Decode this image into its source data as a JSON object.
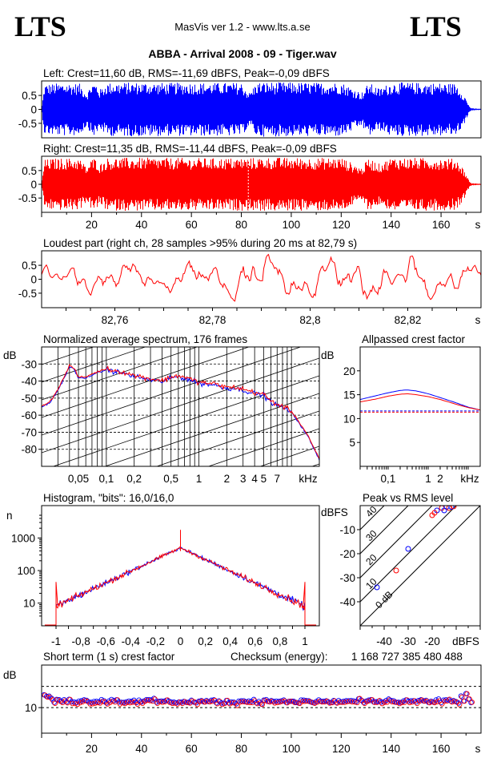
{
  "header": {
    "logo_left": "LTS",
    "logo_right": "LTS",
    "app_title": "MasVis ver 1.2 - www.lts.a.se",
    "track_title": "ABBA - Arrival 2008 - 09 - Tiger.wav"
  },
  "colors": {
    "left": "#0000ff",
    "right": "#ff0000",
    "grid": "#000000"
  },
  "chart_data": [
    {
      "id": "left-waveform",
      "type": "area",
      "title": "Left: Crest=11,60 dB, RMS=-11,69 dBFS, Peak=-0,09 dBFS",
      "ylim": [
        -1,
        1
      ],
      "yticks": [
        "0.5",
        "0",
        "-0.5"
      ],
      "envelope": {
        "x": [
          0,
          1,
          3,
          5,
          10,
          15,
          18,
          20,
          22,
          23,
          26,
          30,
          40,
          50,
          60,
          70,
          80,
          83,
          86,
          90,
          100,
          110,
          120,
          128,
          131,
          135,
          140,
          150,
          160,
          166,
          169,
          170,
          171,
          172,
          176
        ],
        "y": [
          0.15,
          0.9,
          0.92,
          0.93,
          0.95,
          0.93,
          0.6,
          0.95,
          0.93,
          0.7,
          0.95,
          0.96,
          0.97,
          0.95,
          0.96,
          0.95,
          0.96,
          0.6,
          0.97,
          0.98,
          0.97,
          0.96,
          0.97,
          0.6,
          0.96,
          0.75,
          0.97,
          0.96,
          0.95,
          0.93,
          0.55,
          0.35,
          0.15,
          0.04,
          0.02
        ]
      }
    },
    {
      "id": "right-waveform",
      "type": "area",
      "title": "Right: Crest=11,35 dB, RMS=-11,44 dBFS, Peak=-0,09 dBFS",
      "ylim": [
        -1,
        1
      ],
      "yticks": [
        "0.5",
        "0",
        "-0.5"
      ],
      "xticks": [
        "20",
        "40",
        "60",
        "80",
        "100",
        "120",
        "140",
        "160",
        "s"
      ],
      "x_tick_values": [
        20,
        40,
        60,
        80,
        100,
        120,
        140,
        160
      ],
      "x_range": [
        0,
        176
      ],
      "loudest_marker_s": 82.79,
      "envelope": {
        "x": [
          0,
          1,
          3,
          5,
          10,
          15,
          18,
          20,
          22,
          23,
          26,
          30,
          40,
          50,
          60,
          70,
          80,
          83,
          86,
          90,
          100,
          110,
          120,
          128,
          131,
          135,
          140,
          150,
          160,
          166,
          169,
          170,
          171,
          172,
          176
        ],
        "y": [
          0.15,
          0.9,
          0.92,
          0.94,
          0.95,
          0.94,
          0.62,
          0.95,
          0.94,
          0.72,
          0.96,
          0.96,
          0.97,
          0.96,
          0.96,
          0.95,
          0.96,
          0.96,
          0.97,
          0.98,
          0.97,
          0.96,
          0.97,
          0.6,
          0.96,
          0.75,
          0.97,
          0.96,
          0.95,
          0.93,
          0.55,
          0.35,
          0.15,
          0.04,
          0.02
        ]
      }
    },
    {
      "id": "loudest-part",
      "type": "line",
      "title": "Loudest part (right ch, 28 samples >95% during 20 ms at 82,79 s)",
      "ylim": [
        -1,
        1
      ],
      "yticks": [
        "0.5",
        "0",
        "-0.5"
      ],
      "x_range": [
        82.745,
        82.835
      ],
      "xticks": [
        "82,76",
        "82,78",
        "82,8",
        "82,82",
        "s"
      ],
      "x_tick_values": [
        82.76,
        82.78,
        82.8,
        82.82
      ]
    },
    {
      "id": "spectrum",
      "type": "line",
      "title": "Normalized average spectrum, 176 frames",
      "ylabel": "dB",
      "yticks": [
        "-30",
        "-40",
        "-50",
        "-60",
        "-70",
        "-80"
      ],
      "ylim": [
        -90,
        -20
      ],
      "xticks": [
        "0,05",
        "0,1",
        "0,2",
        "0,5",
        "1",
        "2",
        "3",
        "4",
        "5",
        "7",
        "kHz"
      ],
      "x_tick_values": [
        0.05,
        0.1,
        0.2,
        0.5,
        1,
        2,
        3,
        4,
        5,
        7
      ],
      "x_range_khz": [
        0.02,
        20
      ],
      "series": [
        {
          "x": [
            0.02,
            0.025,
            0.03,
            0.035,
            0.04,
            0.045,
            0.05,
            0.06,
            0.07,
            0.08,
            0.1,
            0.12,
            0.15,
            0.2,
            0.25,
            0.3,
            0.4,
            0.5,
            0.6,
            0.8,
            1,
            1.5,
            2,
            2.5,
            3,
            4,
            5,
            6,
            7,
            8,
            10,
            12,
            15,
            20
          ],
          "y": [
            -55,
            -52,
            -45,
            -38,
            -31,
            -33,
            -38,
            -38,
            -36,
            -35,
            -33,
            -34,
            -35,
            -37,
            -38,
            -39,
            -40,
            -38,
            -37,
            -39,
            -41,
            -42,
            -44,
            -44,
            -45,
            -47,
            -48,
            -52,
            -54,
            -55,
            -58,
            -64,
            -72,
            -86
          ]
        }
      ]
    },
    {
      "id": "allpassed-crest",
      "type": "line",
      "title": "Allpassed crest factor",
      "ylabel": "dB",
      "yticks": [
        "20",
        "15",
        "10",
        "5"
      ],
      "ylim": [
        0,
        25
      ],
      "xticks": [
        "0,1",
        "1",
        "2",
        "kHz"
      ],
      "x_tick_values": [
        0.1,
        1,
        2
      ],
      "x_range_khz": [
        0.02,
        20
      ],
      "series": [
        {
          "x": [
            0.02,
            0.05,
            0.1,
            0.2,
            0.3,
            0.5,
            1,
            2,
            5,
            10,
            20
          ],
          "y": [
            14,
            14.8,
            15.4,
            15.9,
            16,
            15.8,
            15.2,
            14.4,
            13.3,
            12.4,
            11.8
          ]
        },
        {
          "x": [
            0.02,
            0.05,
            0.1,
            0.2,
            0.3,
            0.5,
            1,
            2,
            5,
            10,
            20
          ],
          "y": [
            13.5,
            14.1,
            14.7,
            15.1,
            15.2,
            15,
            14.6,
            14,
            13,
            12.3,
            11.8
          ]
        }
      ],
      "reference_lines": [
        11.6,
        11.35
      ]
    },
    {
      "id": "histogram",
      "type": "line",
      "title": "Histogram, \"bits\": 16,0/16,0",
      "ylabel": "n",
      "yticks": [
        "1000",
        "100",
        "10"
      ],
      "xticks": [
        "-1",
        "-0,8",
        "-0,6",
        "-0,4",
        "-0,2",
        "0",
        "0,2",
        "0,4",
        "0,6",
        "0,8",
        "1"
      ],
      "x_tick_values": [
        -1,
        -0.8,
        -0.6,
        -0.4,
        -0.2,
        0,
        0.2,
        0.4,
        0.6,
        0.8,
        1
      ]
    },
    {
      "id": "peak-vs-rms",
      "type": "scatter",
      "title": "Peak vs RMS level",
      "ylabel": "dBFS",
      "xlabel": "dBFS",
      "yticks": [
        "-10",
        "-20",
        "-30",
        "-40"
      ],
      "xticks": [
        "-40",
        "-30",
        "-20"
      ],
      "x_tick_values": [
        -40,
        -30,
        -20
      ],
      "xlim": [
        -50,
        0
      ],
      "ylim": [
        -50,
        0
      ],
      "diagonal_labels": [
        "40",
        "30",
        "20",
        "10",
        "0 dB"
      ],
      "diagonal_offsets": [
        40,
        30,
        20,
        10,
        0
      ],
      "points": [
        {
          "x": -30,
          "y": -18
        },
        {
          "x": -35,
          "y": -27
        },
        {
          "x": -43,
          "y": -34
        },
        {
          "x": -20,
          "y": -4
        },
        {
          "x": -18,
          "y": -2
        },
        {
          "x": -16,
          "y": -1
        },
        {
          "x": -14,
          "y": -0.5
        },
        {
          "x": -13,
          "y": -1
        },
        {
          "x": -12,
          "y": -0.5
        },
        {
          "x": -19,
          "y": -3
        },
        {
          "x": -15,
          "y": -2
        },
        {
          "x": -11,
          "y": -0.3
        }
      ]
    },
    {
      "id": "short-term-crest",
      "type": "scatter",
      "title": "Short term (1 s) crest factor",
      "ylabel": "dB",
      "yticks": [
        "10"
      ],
      "y_tick_values": [
        10
      ],
      "ylim": [
        4,
        20
      ],
      "reference_lines": [
        15,
        10
      ],
      "xticks": [
        "20",
        "40",
        "60",
        "80",
        "100",
        "120",
        "140",
        "160",
        "s"
      ],
      "x_tick_values": [
        20,
        40,
        60,
        80,
        100,
        120,
        140,
        160
      ],
      "x_range": [
        0,
        176
      ],
      "mean_db": 11.5
    }
  ],
  "checksum": {
    "label": "Checksum (energy):",
    "value": "1 168 727 385 480 488"
  }
}
